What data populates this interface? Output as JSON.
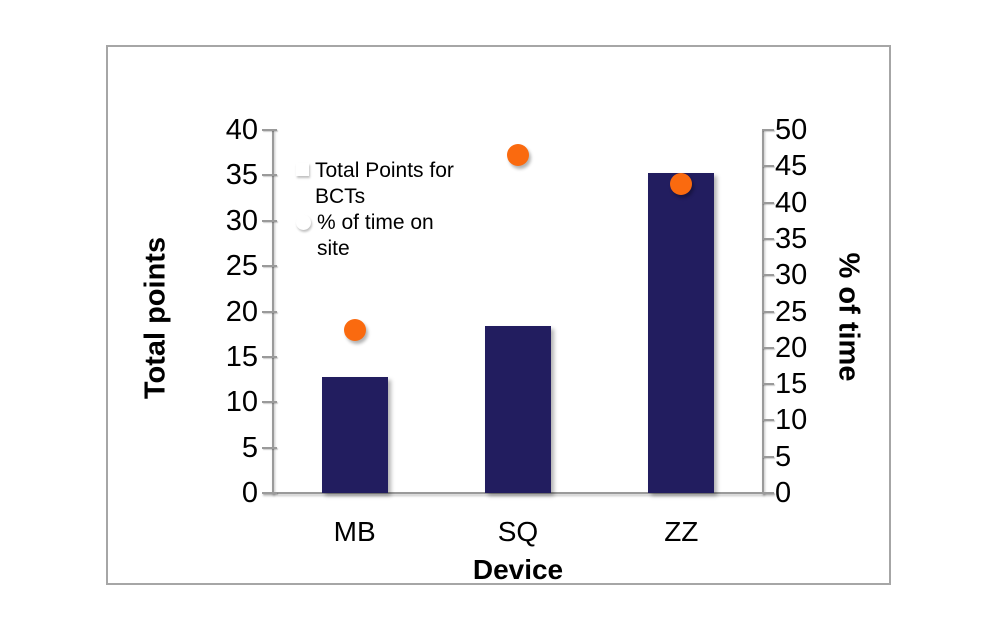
{
  "colors": {
    "bar_navy": "#221D5F",
    "dot_orange": "#FA6A0F",
    "axis_gray": "#9A9A9A",
    "frame_gray": "#A6A6A6",
    "text": "#000000",
    "background": "#FFFFFF"
  },
  "chart_data": {
    "type": "combo",
    "subtypes": [
      "bar",
      "scatter"
    ],
    "categories": [
      "MB",
      "SQ",
      "ZZ"
    ],
    "series": [
      {
        "name": "Total Points for BCTs",
        "type": "bar",
        "axis": "left",
        "marker": "square",
        "color": "#221D5F",
        "values": [
          12.8,
          18.4,
          35.3
        ]
      },
      {
        "name": "% of time on site",
        "type": "scatter",
        "axis": "right",
        "marker": "circle",
        "color": "#FA6A0F",
        "values": [
          22.4,
          46.5,
          42.6
        ]
      }
    ],
    "x_axis": {
      "title": "Device",
      "tick_labels": [
        "MB",
        "SQ",
        "ZZ"
      ]
    },
    "left_axis": {
      "title": "Total points",
      "min": 0,
      "max": 40,
      "step": 5,
      "tick_labels": [
        "40",
        "35",
        "30",
        "25",
        "20",
        "15",
        "10",
        "5",
        "0"
      ]
    },
    "right_axis": {
      "title": "% of time",
      "min": 0,
      "max": 50,
      "step": 5,
      "tick_labels": [
        "50",
        "45",
        "40",
        "35",
        "30",
        "25",
        "20",
        "15",
        "10",
        "5",
        "0"
      ]
    },
    "legend": {
      "position": "inside-top-left"
    },
    "grid": false
  }
}
